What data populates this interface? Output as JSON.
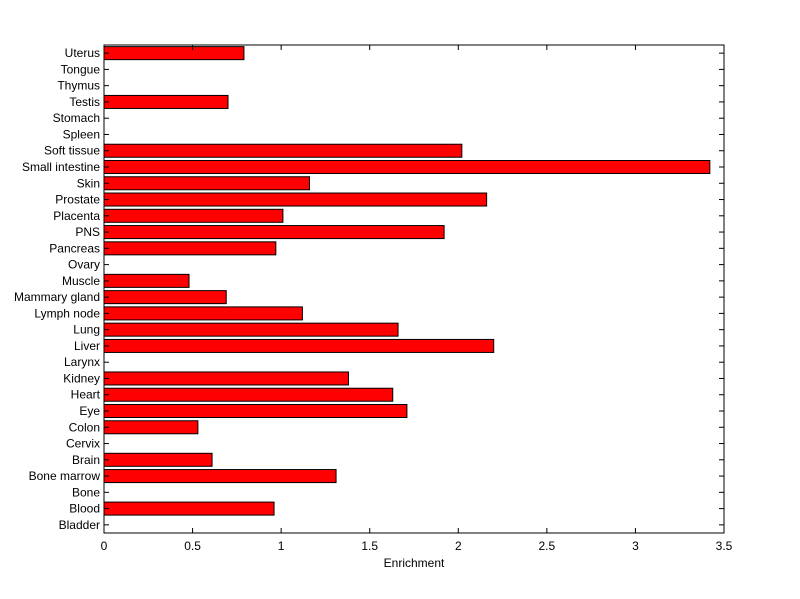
{
  "chart_data": {
    "type": "bar",
    "orientation": "horizontal",
    "title": "",
    "xlabel": "Enrichment",
    "ylabel": "",
    "xlim": [
      0,
      3.5
    ],
    "xticks": [
      "0",
      "0.5",
      "1",
      "1.5",
      "2",
      "2.5",
      "3",
      "3.5"
    ],
    "grid": false,
    "bar_color": "#ff0000",
    "bar_edge_color": "#000000",
    "categories": [
      "Bladder",
      "Blood",
      "Bone",
      "Bone marrow",
      "Brain",
      "Cervix",
      "Colon",
      "Eye",
      "Heart",
      "Kidney",
      "Larynx",
      "Liver",
      "Lung",
      "Lymph node",
      "Mammary gland",
      "Muscle",
      "Ovary",
      "Pancreas",
      "PNS",
      "Placenta",
      "Prostate",
      "Skin",
      "Small intestine",
      "Soft tissue",
      "Spleen",
      "Stomach",
      "Testis",
      "Thymus",
      "Tongue",
      "Uterus"
    ],
    "values": [
      0,
      0.96,
      0,
      1.31,
      0.61,
      0,
      0.53,
      1.71,
      1.63,
      1.38,
      0,
      2.2,
      1.66,
      1.12,
      0.69,
      0.48,
      0,
      0.97,
      1.92,
      1.01,
      2.16,
      1.16,
      3.42,
      2.02,
      0,
      0,
      0.7,
      0,
      0,
      0.79
    ]
  }
}
